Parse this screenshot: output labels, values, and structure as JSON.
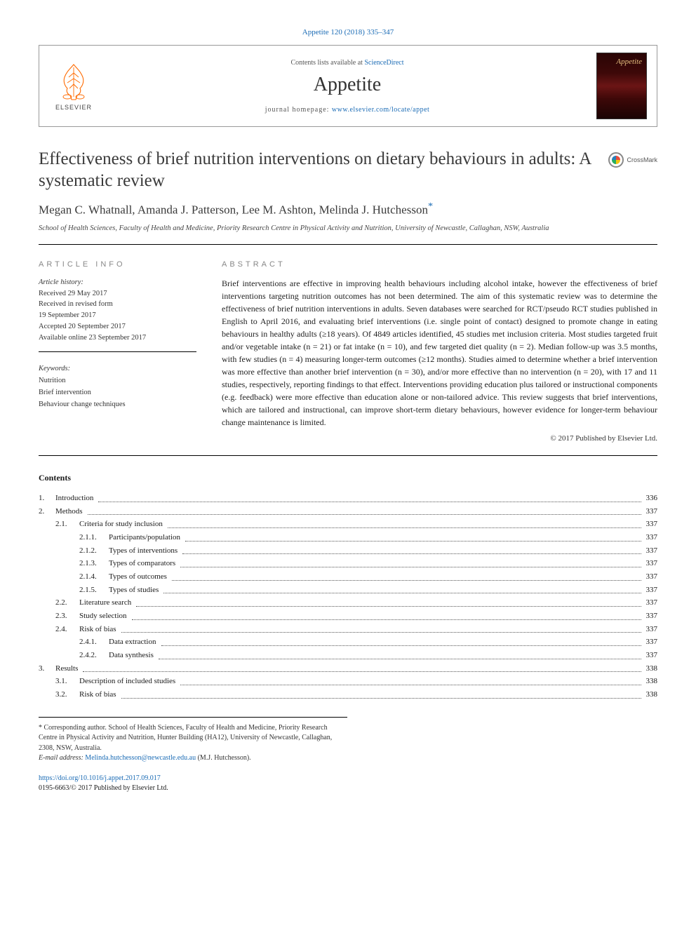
{
  "journal_ref": "Appetite 120 (2018) 335–347",
  "header": {
    "contents_prefix": "Contents lists available at ",
    "contents_link": "ScienceDirect",
    "journal_name": "Appetite",
    "homepage_prefix": "journal homepage: ",
    "homepage_url": "www.elsevier.com/locate/appet",
    "publisher_label": "ELSEVIER"
  },
  "article": {
    "title": "Effectiveness of brief nutrition interventions on dietary behaviours in adults: A systematic review",
    "crossmark_label": "CrossMark",
    "authors": "Megan C. Whatnall, Amanda J. Patterson, Lee M. Ashton, Melinda J. Hutchesson",
    "corresponding_marker": "*",
    "affiliation": "School of Health Sciences, Faculty of Health and Medicine, Priority Research Centre in Physical Activity and Nutrition, University of Newcastle, Callaghan, NSW, Australia"
  },
  "info": {
    "heading": "article info",
    "history_label": "Article history:",
    "received": "Received 29 May 2017",
    "revised_line1": "Received in revised form",
    "revised_line2": "19 September 2017",
    "accepted": "Accepted 20 September 2017",
    "online": "Available online 23 September 2017",
    "keywords_label": "Keywords:",
    "keywords": [
      "Nutrition",
      "Brief intervention",
      "Behaviour change techniques"
    ]
  },
  "abstract": {
    "heading": "abstract",
    "text": "Brief interventions are effective in improving health behaviours including alcohol intake, however the effectiveness of brief interventions targeting nutrition outcomes has not been determined. The aim of this systematic review was to determine the effectiveness of brief nutrition interventions in adults. Seven databases were searched for RCT/pseudo RCT studies published in English to April 2016, and evaluating brief interventions (i.e. single point of contact) designed to promote change in eating behaviours in healthy adults (≥18 years). Of 4849 articles identified, 45 studies met inclusion criteria. Most studies targeted fruit and/or vegetable intake (n = 21) or fat intake (n = 10), and few targeted diet quality (n = 2). Median follow-up was 3.5 months, with few studies (n = 4) measuring longer-term outcomes (≥12 months). Studies aimed to determine whether a brief intervention was more effective than another brief intervention (n = 30), and/or more effective than no intervention (n = 20), with 17 and 11 studies, respectively, reporting findings to that effect. Interventions providing education plus tailored or instructional components (e.g. feedback) were more effective than education alone or non-tailored advice. This review suggests that brief interventions, which are tailored and instructional, can improve short-term dietary behaviours, however evidence for longer-term behaviour change maintenance is limited.",
    "copyright": "© 2017 Published by Elsevier Ltd."
  },
  "contents": {
    "heading": "Contents",
    "items": [
      {
        "num": "1.",
        "label": "Introduction",
        "page": "336",
        "indent": 0
      },
      {
        "num": "2.",
        "label": "Methods",
        "page": "337",
        "indent": 0
      },
      {
        "num": "2.1.",
        "label": "Criteria for study inclusion",
        "page": "337",
        "indent": 1
      },
      {
        "num": "2.1.1.",
        "label": "Participants/population",
        "page": "337",
        "indent": 2
      },
      {
        "num": "2.1.2.",
        "label": "Types of interventions",
        "page": "337",
        "indent": 2
      },
      {
        "num": "2.1.3.",
        "label": "Types of comparators",
        "page": "337",
        "indent": 2
      },
      {
        "num": "2.1.4.",
        "label": "Types of outcomes",
        "page": "337",
        "indent": 2
      },
      {
        "num": "2.1.5.",
        "label": "Types of studies",
        "page": "337",
        "indent": 2
      },
      {
        "num": "2.2.",
        "label": "Literature search",
        "page": "337",
        "indent": 1
      },
      {
        "num": "2.3.",
        "label": "Study selection",
        "page": "337",
        "indent": 1
      },
      {
        "num": "2.4.",
        "label": "Risk of bias",
        "page": "337",
        "indent": 1
      },
      {
        "num": "2.4.1.",
        "label": "Data extraction",
        "page": "337",
        "indent": 2
      },
      {
        "num": "2.4.2.",
        "label": "Data synthesis",
        "page": "337",
        "indent": 2
      },
      {
        "num": "3.",
        "label": "Results",
        "page": "338",
        "indent": 0
      },
      {
        "num": "3.1.",
        "label": "Description of included studies",
        "page": "338",
        "indent": 1
      },
      {
        "num": "3.2.",
        "label": "Risk of bias",
        "page": "338",
        "indent": 1
      }
    ]
  },
  "footnotes": {
    "corr_marker": "*",
    "corr_text": "Corresponding author. School of Health Sciences, Faculty of Health and Medicine, Priority Research Centre in Physical Activity and Nutrition, Hunter Building (HA12), University of Newcastle, Callaghan, 2308, NSW, Australia.",
    "email_label": "E-mail address: ",
    "email": "Melinda.hutchesson@newcastle.edu.au",
    "email_suffix": " (M.J. Hutchesson)."
  },
  "doi": {
    "url": "https://doi.org/10.1016/j.appet.2017.09.017",
    "issn_line": "0195-6663/© 2017 Published by Elsevier Ltd."
  },
  "colors": {
    "link": "#1a6bb5",
    "text": "#1a1a1a",
    "rule": "#000000",
    "muted": "#888888",
    "elsevier_orange": "#ff6a00"
  }
}
